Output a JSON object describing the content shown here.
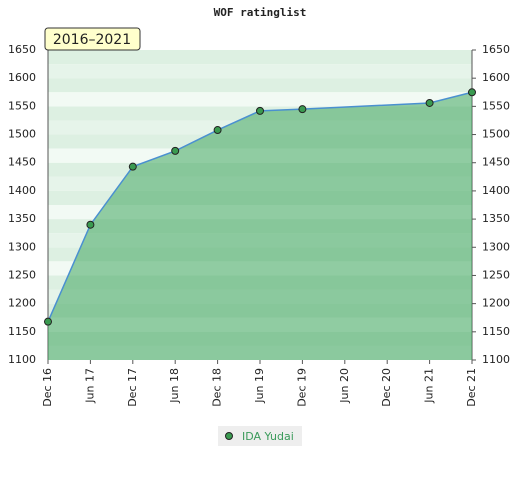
{
  "chart_data": {
    "type": "area",
    "title": "WOF ratinglist",
    "annotation": "2016–2021",
    "xticks": [
      "Dec 16",
      "Jun 17",
      "Dec 17",
      "Jun 18",
      "Dec 18",
      "Jun 19",
      "Dec 19",
      "Jun 20",
      "Dec 20",
      "Jun 21",
      "Dec 21"
    ],
    "x": [
      "Dec 16",
      "Jun 17",
      "Dec 17",
      "Jun 18",
      "Dec 18",
      "Jun 19",
      "Dec 19",
      "Jun 21",
      "Dec 21"
    ],
    "series": [
      {
        "name": "IDA Yudai",
        "color": "#4a90d0",
        "values": [
          1168,
          1340,
          1443,
          1471,
          1508,
          1542,
          1545,
          1556,
          1575
        ]
      }
    ],
    "ylim": [
      1100,
      1650
    ],
    "yticks": [
      1100,
      1150,
      1200,
      1250,
      1300,
      1350,
      1400,
      1450,
      1500,
      1550,
      1600,
      1650
    ]
  }
}
